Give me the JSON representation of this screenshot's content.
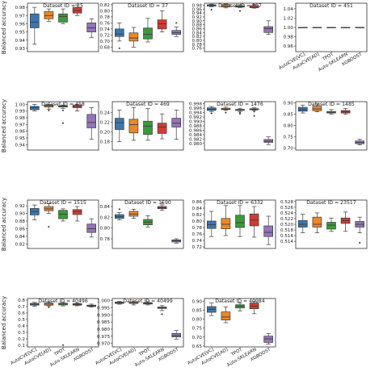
{
  "figure": {
    "ylabel": "Balanced accuracy",
    "methods": [
      "AutoCVE[VC]",
      "AutoCVE[AD]",
      "TPOT",
      "Auto-SKLEARN",
      "XGBOOST"
    ],
    "colors": [
      "#3a77b0",
      "#ef8627",
      "#3a9a3a",
      "#d03b32",
      "#9474bb"
    ]
  },
  "chart_data": [
    {
      "type": "box",
      "title": "Dataset ID = 15",
      "ylim": [
        0.926,
        0.985
      ],
      "ticks": [
        0.93,
        0.94,
        0.95,
        0.96,
        0.97,
        0.98
      ],
      "boxes": [
        {
          "min": 0.935,
          "q1": 0.955,
          "med": 0.962,
          "q3": 0.972,
          "max": 0.98,
          "outliers": []
        },
        {
          "min": 0.963,
          "q1": 0.966,
          "med": 0.97,
          "q3": 0.975,
          "max": 0.978,
          "outliers": []
        },
        {
          "min": 0.96,
          "q1": 0.962,
          "med": 0.969,
          "q3": 0.972,
          "max": 0.978,
          "outliers": []
        },
        {
          "min": 0.97,
          "q1": 0.973,
          "med": 0.976,
          "q3": 0.98,
          "max": 0.983,
          "outliers": []
        },
        {
          "min": 0.943,
          "q1": 0.95,
          "med": 0.955,
          "q3": 0.961,
          "max": 0.966,
          "outliers": []
        }
      ]
    },
    {
      "type": "box",
      "title": "Dataset ID = 37",
      "ylim": [
        0.665,
        0.825
      ],
      "ticks": [
        0.68,
        0.7,
        0.72,
        0.74,
        0.76,
        0.78,
        0.8,
        0.82
      ],
      "boxes": [
        {
          "min": 0.7,
          "q1": 0.715,
          "med": 0.723,
          "q3": 0.74,
          "max": 0.76,
          "outliers": [
            0.676
          ]
        },
        {
          "min": 0.68,
          "q1": 0.7,
          "med": 0.71,
          "q3": 0.727,
          "max": 0.745,
          "outliers": []
        },
        {
          "min": 0.697,
          "q1": 0.707,
          "med": 0.722,
          "q3": 0.743,
          "max": 0.775,
          "outliers": []
        },
        {
          "min": 0.73,
          "q1": 0.74,
          "med": 0.757,
          "q3": 0.77,
          "max": 0.8,
          "outliers": []
        },
        {
          "min": 0.715,
          "q1": 0.722,
          "med": 0.728,
          "q3": 0.735,
          "max": 0.746,
          "outliers": [
            0.76
          ]
        }
      ]
    },
    {
      "type": "box",
      "title": "Dataset ID = 307",
      "ylim": [
        0.742,
        0.99
      ],
      "ticks": [
        0.76,
        0.78,
        0.8,
        0.82,
        0.84,
        0.86,
        0.88,
        0.9,
        0.92,
        0.94,
        0.96,
        0.98
      ],
      "boxes": [
        {
          "min": 0.972,
          "q1": 0.975,
          "med": 0.98,
          "q3": 0.982,
          "max": 0.985,
          "outliers": [
            0.957
          ]
        },
        {
          "min": 0.966,
          "q1": 0.971,
          "med": 0.977,
          "q3": 0.983,
          "max": 0.986,
          "outliers": []
        },
        {
          "min": 0.968,
          "q1": 0.97,
          "med": 0.974,
          "q3": 0.977,
          "max": 0.982,
          "outliers": [
            0.95
          ]
        },
        {
          "min": 0.965,
          "q1": 0.967,
          "med": 0.97,
          "q3": 0.978,
          "max": 0.984,
          "outliers": []
        },
        {
          "min": 0.83,
          "q1": 0.84,
          "med": 0.86,
          "q3": 0.87,
          "max": 0.9,
          "outliers": []
        }
      ]
    },
    {
      "type": "box",
      "title": "Dataset ID = 451",
      "ylim": [
        0.948,
        1.052
      ],
      "ticks": [
        0.96,
        0.98,
        1.0,
        1.02,
        1.04
      ],
      "boxes": [
        {
          "min": 1.0,
          "q1": 1.0,
          "med": 1.0,
          "q3": 1.0,
          "max": 1.0,
          "outliers": []
        },
        {
          "min": 1.0,
          "q1": 1.0,
          "med": 1.0,
          "q3": 1.0,
          "max": 1.0,
          "outliers": []
        },
        {
          "min": 1.0,
          "q1": 1.0,
          "med": 1.0,
          "q3": 1.0,
          "max": 1.0,
          "outliers": []
        },
        {
          "min": 1.0,
          "q1": 1.0,
          "med": 1.0,
          "q3": 1.0,
          "max": 1.0,
          "outliers": []
        },
        {
          "min": 1.0,
          "q1": 1.0,
          "med": 1.0,
          "q3": 1.0,
          "max": 1.0,
          "outliers": []
        }
      ]
    },
    {
      "type": "box",
      "title": "Dataset ID = 458",
      "ylim": [
        0.932,
        1.004
      ],
      "ticks": [
        0.94,
        0.95,
        0.96,
        0.97,
        0.98,
        0.99,
        1.0
      ],
      "boxes": [
        {
          "min": 0.99,
          "q1": 0.992,
          "med": 0.995,
          "q3": 0.997,
          "max": 1.0,
          "outliers": []
        },
        {
          "min": 0.993,
          "q1": 0.996,
          "med": 0.998,
          "q3": 0.999,
          "max": 1.0,
          "outliers": [
            0.991
          ]
        },
        {
          "min": 0.994,
          "q1": 0.996,
          "med": 0.997,
          "q3": 0.998,
          "max": 0.999,
          "outliers": [
            0.991,
            0.972
          ]
        },
        {
          "min": 0.99,
          "q1": 0.995,
          "med": 0.997,
          "q3": 0.999,
          "max": 1.0,
          "outliers": []
        },
        {
          "min": 0.948,
          "q1": 0.965,
          "med": 0.973,
          "q3": 0.985,
          "max": 0.995,
          "outliers": []
        }
      ]
    },
    {
      "type": "box",
      "title": "Dataset ID = 469",
      "ylim": [
        0.163,
        0.262
      ],
      "ticks": [
        0.18,
        0.2,
        0.22,
        0.24
      ],
      "boxes": [
        {
          "min": 0.18,
          "q1": 0.205,
          "med": 0.219,
          "q3": 0.228,
          "max": 0.245,
          "outliers": []
        },
        {
          "min": 0.183,
          "q1": 0.198,
          "med": 0.215,
          "q3": 0.226,
          "max": 0.25,
          "outliers": []
        },
        {
          "min": 0.183,
          "q1": 0.195,
          "med": 0.212,
          "q3": 0.222,
          "max": 0.248,
          "outliers": []
        },
        {
          "min": 0.186,
          "q1": 0.197,
          "med": 0.21,
          "q3": 0.218,
          "max": 0.237,
          "outliers": []
        },
        {
          "min": 0.185,
          "q1": 0.21,
          "med": 0.218,
          "q3": 0.228,
          "max": 0.245,
          "outliers": []
        }
      ]
    },
    {
      "type": "box",
      "title": "Dataset ID = 1476",
      "ylim": [
        0.977,
        0.999
      ],
      "ticks": [
        0.98,
        0.982,
        0.984,
        0.986,
        0.988,
        0.99,
        0.992,
        0.994,
        0.996,
        0.998
      ],
      "boxes": [
        {
          "min": 0.9945,
          "q1": 0.995,
          "med": 0.9955,
          "q3": 0.9962,
          "max": 0.9968,
          "outliers": [
            0.9937
          ]
        },
        {
          "min": 0.995,
          "q1": 0.9954,
          "med": 0.9956,
          "q3": 0.996,
          "max": 0.9965,
          "outliers": [
            0.994
          ]
        },
        {
          "min": 0.9945,
          "q1": 0.995,
          "med": 0.9952,
          "q3": 0.9955,
          "max": 0.996,
          "outliers": [
            0.994,
            0.9935
          ]
        },
        {
          "min": 0.995,
          "q1": 0.9953,
          "med": 0.9955,
          "q3": 0.9958,
          "max": 0.9962,
          "outliers": [
            0.9945,
            0.9925
          ]
        },
        {
          "min": 0.9795,
          "q1": 0.9805,
          "med": 0.981,
          "q3": 0.9818,
          "max": 0.983,
          "outliers": []
        }
      ]
    },
    {
      "type": "box",
      "title": "Dataset ID = 1485",
      "ylim": [
        0.692,
        0.905
      ],
      "ticks": [
        0.7,
        0.75,
        0.8,
        0.85,
        0.9
      ],
      "boxes": [
        {
          "min": 0.855,
          "q1": 0.863,
          "med": 0.87,
          "q3": 0.88,
          "max": 0.89,
          "outliers": []
        },
        {
          "min": 0.86,
          "q1": 0.865,
          "med": 0.873,
          "q3": 0.885,
          "max": 0.895,
          "outliers": []
        },
        {
          "min": 0.85,
          "q1": 0.855,
          "med": 0.858,
          "q3": 0.862,
          "max": 0.87,
          "outliers": []
        },
        {
          "min": 0.85,
          "q1": 0.855,
          "med": 0.86,
          "q3": 0.866,
          "max": 0.875,
          "outliers": []
        },
        {
          "min": 0.715,
          "q1": 0.72,
          "med": 0.725,
          "q3": 0.732,
          "max": 0.74,
          "outliers": []
        }
      ]
    },
    {
      "type": "box",
      "title": "Dataset ID = 1515",
      "ylim": [
        0.808,
        0.935
      ],
      "ticks": [
        0.82,
        0.84,
        0.86,
        0.88,
        0.9,
        0.92
      ],
      "boxes": [
        {
          "min": 0.883,
          "q1": 0.896,
          "med": 0.905,
          "q3": 0.913,
          "max": 0.922,
          "outliers": []
        },
        {
          "min": 0.9,
          "q1": 0.907,
          "med": 0.912,
          "q3": 0.918,
          "max": 0.926,
          "outliers": [
            0.865
          ]
        },
        {
          "min": 0.88,
          "q1": 0.886,
          "med": 0.898,
          "q3": 0.908,
          "max": 0.912,
          "outliers": []
        },
        {
          "min": 0.88,
          "q1": 0.897,
          "med": 0.905,
          "q3": 0.91,
          "max": 0.918,
          "outliers": []
        },
        {
          "min": 0.838,
          "q1": 0.85,
          "med": 0.86,
          "q3": 0.872,
          "max": 0.886,
          "outliers": []
        }
      ]
    },
    {
      "type": "box",
      "title": "Dataset ID = 1590",
      "ylim": [
        0.762,
        0.852
      ],
      "ticks": [
        0.78,
        0.8,
        0.82,
        0.84
      ],
      "boxes": [
        {
          "min": 0.815,
          "q1": 0.818,
          "med": 0.821,
          "q3": 0.825,
          "max": 0.829,
          "outliers": [
            0.835
          ]
        },
        {
          "min": 0.818,
          "q1": 0.822,
          "med": 0.826,
          "q3": 0.831,
          "max": 0.835,
          "outliers": []
        },
        {
          "min": 0.802,
          "q1": 0.806,
          "med": 0.811,
          "q3": 0.816,
          "max": 0.823,
          "outliers": []
        },
        {
          "min": 0.833,
          "q1": 0.836,
          "med": 0.838,
          "q3": 0.84,
          "max": 0.843,
          "outliers": [
            0.847
          ]
        },
        {
          "min": 0.772,
          "q1": 0.774,
          "med": 0.776,
          "q3": 0.778,
          "max": 0.78,
          "outliers": []
        }
      ]
    },
    {
      "type": "box",
      "title": "Dataset ID = 6332",
      "ylim": [
        0.715,
        0.865
      ],
      "ticks": [
        0.72,
        0.74,
        0.76,
        0.78,
        0.8,
        0.82,
        0.84,
        0.86
      ],
      "boxes": [
        {
          "min": 0.752,
          "q1": 0.777,
          "med": 0.789,
          "q3": 0.8,
          "max": 0.83,
          "outliers": []
        },
        {
          "min": 0.755,
          "q1": 0.776,
          "med": 0.79,
          "q3": 0.808,
          "max": 0.848,
          "outliers": []
        },
        {
          "min": 0.752,
          "q1": 0.78,
          "med": 0.795,
          "q3": 0.818,
          "max": 0.848,
          "outliers": []
        },
        {
          "min": 0.75,
          "q1": 0.785,
          "med": 0.803,
          "q3": 0.822,
          "max": 0.845,
          "outliers": []
        },
        {
          "min": 0.727,
          "q1": 0.752,
          "med": 0.765,
          "q3": 0.785,
          "max": 0.815,
          "outliers": []
        }
      ]
    },
    {
      "type": "box",
      "title": "Dataset ID = 23517",
      "ylim": [
        0.5115,
        0.5285
      ],
      "ticks": [
        0.514,
        0.516,
        0.518,
        0.52,
        0.522,
        0.524,
        0.526,
        0.528
      ],
      "boxes": [
        {
          "min": 0.517,
          "q1": 0.519,
          "med": 0.52,
          "q3": 0.5213,
          "max": 0.5235,
          "outliers": []
        },
        {
          "min": 0.517,
          "q1": 0.519,
          "med": 0.52,
          "q3": 0.5225,
          "max": 0.524,
          "outliers": []
        },
        {
          "min": 0.5175,
          "q1": 0.5183,
          "med": 0.5197,
          "q3": 0.5207,
          "max": 0.5222,
          "outliers": []
        },
        {
          "min": 0.5175,
          "q1": 0.5203,
          "med": 0.5213,
          "q3": 0.5222,
          "max": 0.5243,
          "outliers": []
        },
        {
          "min": 0.517,
          "q1": 0.519,
          "med": 0.52,
          "q3": 0.521,
          "max": 0.5225,
          "outliers": [
            0.5135
          ]
        }
      ]
    },
    {
      "type": "box",
      "title": "Dataset ID = 40496",
      "ylim": [
        0.075,
        0.825
      ],
      "ticks": [
        0.1,
        0.2,
        0.3,
        0.4,
        0.5,
        0.6,
        0.7,
        0.8
      ],
      "boxes": [
        {
          "min": 0.705,
          "q1": 0.722,
          "med": 0.735,
          "q3": 0.75,
          "max": 0.765,
          "outliers": []
        },
        {
          "min": 0.71,
          "q1": 0.722,
          "med": 0.74,
          "q3": 0.752,
          "max": 0.77,
          "outliers": [
            0.69
          ]
        },
        {
          "min": 0.71,
          "q1": 0.725,
          "med": 0.74,
          "q3": 0.752,
          "max": 0.765,
          "outliers": [
            0.103
          ]
        },
        {
          "min": 0.712,
          "q1": 0.722,
          "med": 0.732,
          "q3": 0.745,
          "max": 0.757,
          "outliers": []
        },
        {
          "min": 0.693,
          "q1": 0.7,
          "med": 0.712,
          "q3": 0.722,
          "max": 0.738,
          "outliers": []
        }
      ]
    },
    {
      "type": "box",
      "title": "Dataset ID = 40499",
      "ylim": [
        0.9675,
        1.0015
      ],
      "ticks": [
        0.97,
        0.975,
        0.98,
        0.985,
        0.99,
        0.995,
        1.0
      ],
      "boxes": [
        {
          "min": 0.9975,
          "q1": 0.998,
          "med": 0.9985,
          "q3": 0.999,
          "max": 0.9995,
          "outliers": []
        },
        {
          "min": 0.997,
          "q1": 0.998,
          "med": 0.9985,
          "q3": 0.999,
          "max": 0.9997,
          "outliers": []
        },
        {
          "min": 0.997,
          "q1": 0.9976,
          "med": 0.998,
          "q3": 0.9986,
          "max": 0.9993,
          "outliers": []
        },
        {
          "min": 0.993,
          "q1": 0.9945,
          "med": 0.995,
          "q3": 0.9955,
          "max": 0.9965,
          "outliers": [
            0.9905
          ]
        },
        {
          "min": 0.973,
          "q1": 0.9745,
          "med": 0.9755,
          "q3": 0.977,
          "max": 0.979,
          "outliers": []
        }
      ]
    },
    {
      "type": "box",
      "title": "Dataset ID = 40984",
      "ylim": [
        0.645,
        0.915
      ],
      "ticks": [
        0.65,
        0.7,
        0.75,
        0.8,
        0.85,
        0.9
      ],
      "boxes": [
        {
          "min": 0.82,
          "q1": 0.838,
          "med": 0.855,
          "q3": 0.87,
          "max": 0.89,
          "outliers": []
        },
        {
          "min": 0.78,
          "q1": 0.795,
          "med": 0.812,
          "q3": 0.84,
          "max": 0.868,
          "outliers": []
        },
        {
          "min": 0.845,
          "q1": 0.862,
          "med": 0.873,
          "q3": 0.88,
          "max": 0.89,
          "outliers": []
        },
        {
          "min": 0.83,
          "q1": 0.858,
          "med": 0.872,
          "q3": 0.89,
          "max": 0.9,
          "outliers": []
        },
        {
          "min": 0.66,
          "q1": 0.67,
          "med": 0.69,
          "q3": 0.705,
          "max": 0.72,
          "outliers": []
        }
      ]
    }
  ]
}
